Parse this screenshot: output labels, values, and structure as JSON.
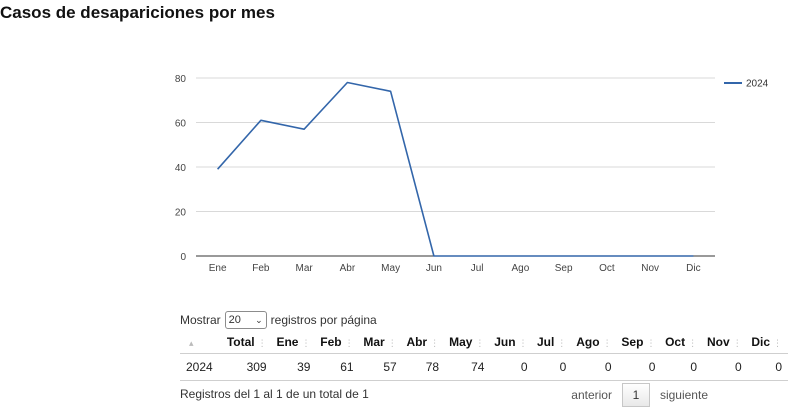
{
  "title": "Casos de desapariciones por mes",
  "chart_data": {
    "type": "line",
    "categories": [
      "Ene",
      "Feb",
      "Mar",
      "Abr",
      "May",
      "Jun",
      "Jul",
      "Ago",
      "Sep",
      "Oct",
      "Nov",
      "Dic"
    ],
    "series": [
      {
        "name": "2024",
        "values": [
          39,
          61,
          57,
          78,
          74,
          0,
          0,
          0,
          0,
          0,
          0,
          0
        ],
        "color": "#3366aa"
      }
    ],
    "ylim": [
      0,
      80
    ],
    "yticks": [
      0,
      20,
      40,
      60,
      80
    ],
    "grid": true,
    "legend": "top-right"
  },
  "controls": {
    "show_label": "Mostrar",
    "page_size": "20",
    "per_page_label": "registros por página"
  },
  "table": {
    "headers": [
      "",
      "Total",
      "Ene",
      "Feb",
      "Mar",
      "Abr",
      "May",
      "Jun",
      "Jul",
      "Ago",
      "Sep",
      "Oct",
      "Nov",
      "Dic"
    ],
    "rows": [
      [
        "2024",
        "309",
        "39",
        "61",
        "57",
        "78",
        "74",
        "0",
        "0",
        "0",
        "0",
        "0",
        "0",
        "0"
      ]
    ]
  },
  "footer": {
    "info": "Registros del 1 al 1 de un total de 1",
    "prev": "anterior",
    "page": "1",
    "next": "siguiente"
  }
}
